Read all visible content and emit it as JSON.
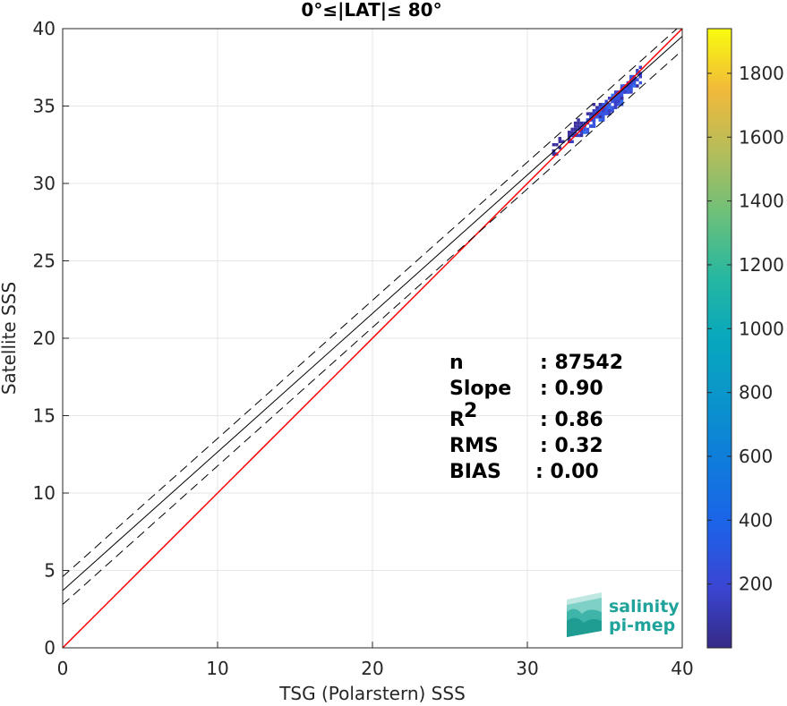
{
  "chart_data": {
    "type": "scatter",
    "title": "0°≤|LAT|≤ 80°",
    "xlabel": "TSG (Polarstern) SSS",
    "ylabel": "Satellite SSS",
    "xlim": [
      0,
      40
    ],
    "ylim": [
      0,
      40
    ],
    "x_ticks": [
      "0",
      "10",
      "20",
      "30",
      "40"
    ],
    "y_ticks": [
      "0",
      "5",
      "10",
      "15",
      "20",
      "25",
      "30",
      "35",
      "40"
    ],
    "grid": true,
    "colorbar": {
      "range": [
        0,
        1940
      ],
      "ticks": [
        "200",
        "400",
        "600",
        "800",
        "1000",
        "1200",
        "1400",
        "1600",
        "1800"
      ],
      "colormap": "parula"
    },
    "series": [
      {
        "kind": "density-2d-histogram",
        "x_range": [
          31.0,
          37.3
        ],
        "y_range": [
          31.8,
          37.5
        ],
        "description_points": [
          {
            "x": 32.0,
            "y": 32.3,
            "count": 20
          },
          {
            "x": 33.0,
            "y": 33.4,
            "count": 40
          },
          {
            "x": 34.0,
            "y": 33.9,
            "count": 120
          },
          {
            "x": 34.8,
            "y": 34.5,
            "count": 260
          },
          {
            "x": 35.5,
            "y": 35.2,
            "count": 320
          },
          {
            "x": 36.2,
            "y": 35.9,
            "count": 240
          },
          {
            "x": 36.8,
            "y": 36.6,
            "count": 150
          }
        ]
      }
    ],
    "lines": [
      {
        "name": "identity",
        "color": "#ff0000",
        "style": "solid",
        "x": [
          0,
          40
        ],
        "y": [
          0,
          40
        ]
      },
      {
        "name": "fit",
        "color": "#000000",
        "style": "solid",
        "x": [
          0,
          40
        ],
        "y": [
          3.7,
          39.5
        ]
      },
      {
        "name": "fit-upper",
        "color": "#000000",
        "style": "dashed",
        "x": [
          0,
          40
        ],
        "y": [
          4.6,
          40.3
        ]
      },
      {
        "name": "fit-lower",
        "color": "#000000",
        "style": "dashed",
        "x": [
          0,
          40
        ],
        "y": [
          2.8,
          38.6
        ]
      }
    ],
    "stats": [
      {
        "label": "n",
        "value": ": 87542"
      },
      {
        "label": "Slope",
        "value": ": 0.90"
      },
      {
        "label": "R",
        "sup": "2",
        "value": ": 0.86"
      },
      {
        "label": "RMS",
        "value": ": 0.32"
      },
      {
        "label": "BIAS",
        "value": ": 0.00"
      }
    ]
  },
  "logo": {
    "line1": "salinity",
    "line2": "pi-mep",
    "color": "#1fa39a"
  }
}
